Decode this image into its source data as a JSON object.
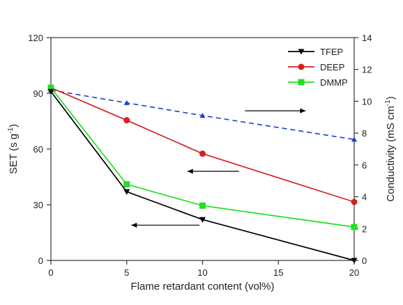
{
  "chart_data": {
    "type": "line",
    "xlabel": "Flame retardant content (vol%)",
    "ylabel_left": "SET (s g",
    "ylabel_left_sup": "-1",
    "ylabel_left_end": ")",
    "ylabel_right": "Conductivity (mS cm",
    "ylabel_right_sup": "-1",
    "ylabel_right_end": ")",
    "xlim": [
      0,
      20
    ],
    "ylim_left": [
      0,
      120
    ],
    "ylim_right": [
      0,
      14
    ],
    "x_ticks": [
      0,
      5,
      10,
      15,
      20
    ],
    "y_left_ticks": [
      0,
      30,
      60,
      90,
      120
    ],
    "y_right_ticks": [
      0,
      2,
      4,
      6,
      8,
      10,
      12,
      14
    ],
    "legend_position": "top-right",
    "series": [
      {
        "name": "TFEP",
        "axis": "left",
        "color": "#000000",
        "marker": "triangle-down",
        "x": [
          0,
          5,
          10,
          20
        ],
        "y": [
          91,
          37,
          22,
          0
        ]
      },
      {
        "name": "DEEP",
        "axis": "left",
        "color": "#d62020",
        "marker": "circle",
        "x": [
          0,
          5,
          10,
          20
        ],
        "y": [
          93,
          75.5,
          57.5,
          31.5
        ]
      },
      {
        "name": "DMMP",
        "axis": "left",
        "color": "#22e022",
        "marker": "square",
        "x": [
          0,
          5,
          10,
          20
        ],
        "y": [
          93,
          41,
          29.5,
          18
        ]
      }
    ],
    "conductivity_series": {
      "axis": "right",
      "color": "#1a3ec8",
      "style": "dashed",
      "marker": "triangle-up",
      "x": [
        0,
        5,
        10,
        20
      ],
      "y": [
        10.7,
        9.9,
        9.1,
        7.6
      ]
    },
    "annotations": [
      {
        "type": "arrow",
        "direction": "right",
        "points_to": "right-axis"
      },
      {
        "type": "arrow",
        "direction": "left",
        "points_to": "left-axis"
      },
      {
        "type": "arrow",
        "direction": "left",
        "points_to": "left-axis"
      }
    ]
  }
}
